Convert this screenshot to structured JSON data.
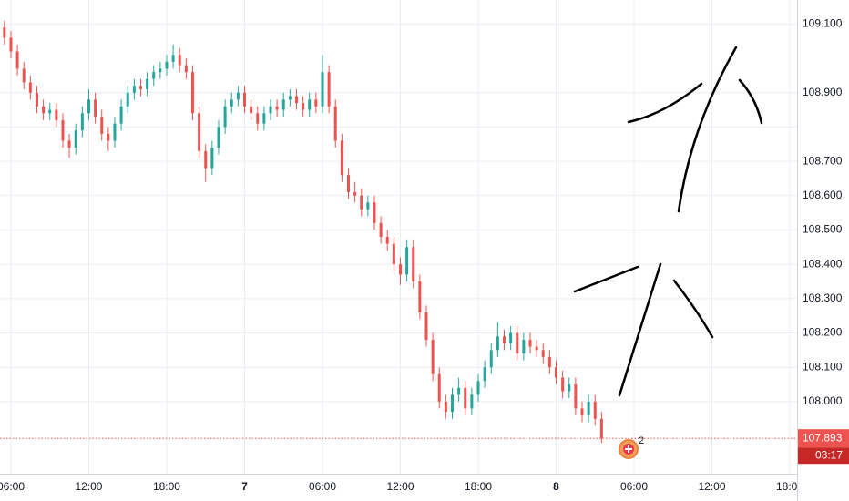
{
  "chart_data": {
    "type": "candlestick",
    "xlim": [
      5.16,
      66.56
    ],
    "xticks": [
      {
        "value": 6,
        "label": "06:00"
      },
      {
        "value": 12,
        "label": "12:00"
      },
      {
        "value": 18,
        "label": "18:00"
      },
      {
        "value": 24,
        "label": "7"
      },
      {
        "value": 30,
        "label": "06:00"
      },
      {
        "value": 36,
        "label": "12:00"
      },
      {
        "value": 42,
        "label": "18:00"
      },
      {
        "value": 48,
        "label": "8"
      },
      {
        "value": 54,
        "label": "06:00"
      },
      {
        "value": 60,
        "label": "12:00"
      },
      {
        "value": 66,
        "label": "18:00"
      }
    ],
    "ylim": [
      107.79,
      109.17
    ],
    "yticks": [
      {
        "value": 108.0,
        "label": "108.000"
      },
      {
        "value": 108.1,
        "label": "108.100"
      },
      {
        "value": 108.2,
        "label": "108.200"
      },
      {
        "value": 108.3,
        "label": "108.300"
      },
      {
        "value": 108.4,
        "label": "108.400"
      },
      {
        "value": 108.5,
        "label": "108.500"
      },
      {
        "value": 108.6,
        "label": "108.600"
      },
      {
        "value": 108.7,
        "label": "108.700"
      },
      {
        "value": 108.8,
        "label": null
      },
      {
        "value": 108.9,
        "label": "108.900"
      },
      {
        "value": 109.1,
        "label": "109.100"
      }
    ],
    "grid": true,
    "up_color": "#26a69a",
    "down_color": "#ef5350",
    "x": [
      5.5,
      6,
      6.5,
      7,
      7.5,
      8,
      8.5,
      9,
      9.5,
      10,
      10.5,
      11,
      11.5,
      12,
      12.5,
      13,
      13.5,
      14,
      14.5,
      15,
      15.5,
      16,
      16.5,
      17,
      17.5,
      18,
      18.5,
      19,
      19.5,
      20,
      20.5,
      21,
      21.5,
      22,
      22.5,
      23,
      23.5,
      24,
      24.5,
      25,
      25.5,
      26,
      26.5,
      27,
      27.5,
      28,
      28.5,
      29,
      29.5,
      30,
      30.5,
      31,
      31.5,
      32,
      32.5,
      33,
      33.5,
      34,
      34.5,
      35,
      35.5,
      36,
      36.5,
      37,
      37.5,
      38,
      38.5,
      39,
      39.5,
      40,
      40.5,
      41,
      41.5,
      42,
      42.5,
      43,
      43.5,
      44,
      44.5,
      45,
      45.5,
      46,
      46.5,
      47,
      47.5,
      48,
      48.5,
      49,
      49.5,
      50,
      50.5,
      51,
      51.5
    ],
    "open": [
      109.09,
      109.06,
      109.02,
      108.97,
      108.93,
      108.9,
      108.86,
      108.84,
      108.85,
      108.82,
      108.76,
      108.74,
      108.79,
      108.84,
      108.88,
      108.83,
      108.78,
      108.76,
      108.81,
      108.86,
      108.9,
      108.92,
      108.91,
      108.94,
      108.96,
      108.97,
      108.99,
      109.01,
      108.98,
      108.96,
      108.84,
      108.73,
      108.68,
      108.74,
      108.8,
      108.86,
      108.88,
      108.9,
      108.86,
      108.84,
      108.81,
      108.84,
      108.86,
      108.85,
      108.88,
      108.89,
      108.87,
      108.85,
      108.88,
      108.86,
      108.96,
      108.86,
      108.76,
      108.66,
      108.61,
      108.6,
      108.56,
      108.58,
      108.52,
      108.48,
      108.46,
      108.4,
      108.37,
      108.45,
      108.35,
      108.26,
      108.18,
      108.08,
      108.0,
      107.97,
      108.02,
      108.04,
      107.98,
      108.02,
      108.06,
      108.1,
      108.15,
      108.19,
      108.17,
      108.2,
      108.14,
      108.18,
      108.16,
      108.15,
      108.13,
      108.1,
      108.07,
      108.03,
      108.05,
      107.98,
      107.96,
      108.0,
      107.95
    ],
    "high": [
      109.11,
      109.08,
      109.04,
      108.99,
      108.95,
      108.92,
      108.88,
      108.87,
      108.87,
      108.84,
      108.78,
      108.81,
      108.86,
      108.91,
      108.9,
      108.85,
      108.8,
      108.83,
      108.88,
      108.92,
      108.94,
      108.94,
      108.96,
      108.98,
      108.99,
      109.01,
      109.04,
      109.03,
      109.0,
      108.98,
      108.86,
      108.75,
      108.76,
      108.82,
      108.88,
      108.9,
      108.92,
      108.92,
      108.88,
      108.86,
      108.86,
      108.88,
      108.88,
      108.9,
      108.91,
      108.91,
      108.89,
      108.9,
      108.9,
      109.01,
      108.98,
      108.88,
      108.78,
      108.68,
      108.64,
      108.62,
      108.6,
      108.6,
      108.54,
      108.5,
      108.48,
      108.42,
      108.47,
      108.47,
      108.37,
      108.28,
      108.2,
      108.1,
      108.02,
      108.04,
      108.07,
      108.06,
      108.04,
      108.08,
      108.12,
      108.17,
      108.23,
      108.21,
      108.22,
      108.22,
      108.2,
      108.2,
      108.18,
      108.17,
      108.15,
      108.12,
      108.09,
      108.07,
      108.07,
      108.0,
      108.02,
      108.02,
      107.97
    ],
    "low": [
      109.04,
      109.0,
      108.95,
      108.91,
      108.88,
      108.84,
      108.82,
      108.82,
      108.8,
      108.74,
      108.71,
      108.72,
      108.77,
      108.82,
      108.81,
      108.76,
      108.73,
      108.74,
      108.79,
      108.84,
      108.88,
      108.89,
      108.89,
      108.92,
      108.94,
      108.95,
      108.97,
      108.96,
      108.94,
      108.82,
      108.71,
      108.64,
      108.66,
      108.72,
      108.78,
      108.84,
      108.86,
      108.84,
      108.82,
      108.79,
      108.79,
      108.82,
      108.83,
      108.83,
      108.86,
      108.85,
      108.83,
      108.83,
      108.84,
      108.84,
      108.84,
      108.74,
      108.64,
      108.59,
      108.58,
      108.54,
      108.54,
      108.5,
      108.46,
      108.44,
      108.38,
      108.34,
      108.35,
      108.33,
      108.24,
      108.16,
      108.06,
      107.98,
      107.95,
      107.95,
      108.0,
      107.96,
      107.96,
      108.0,
      108.04,
      108.08,
      108.13,
      108.15,
      108.15,
      108.12,
      108.12,
      108.14,
      108.13,
      108.11,
      108.08,
      108.05,
      108.01,
      108.01,
      107.96,
      107.94,
      107.94,
      107.93,
      107.88
    ],
    "close": [
      109.06,
      109.02,
      108.97,
      108.93,
      108.9,
      108.86,
      108.84,
      108.85,
      108.82,
      108.76,
      108.74,
      108.79,
      108.84,
      108.88,
      108.83,
      108.78,
      108.76,
      108.81,
      108.86,
      108.9,
      108.92,
      108.91,
      108.94,
      108.96,
      108.97,
      108.99,
      109.01,
      108.98,
      108.96,
      108.84,
      108.73,
      108.68,
      108.74,
      108.8,
      108.86,
      108.88,
      108.9,
      108.86,
      108.84,
      108.81,
      108.84,
      108.86,
      108.85,
      108.88,
      108.89,
      108.87,
      108.85,
      108.88,
      108.86,
      108.96,
      108.86,
      108.76,
      108.66,
      108.61,
      108.6,
      108.56,
      108.58,
      108.52,
      108.48,
      108.46,
      108.4,
      108.37,
      108.45,
      108.35,
      108.26,
      108.18,
      108.08,
      108.0,
      107.97,
      108.02,
      108.04,
      107.98,
      108.02,
      108.06,
      108.1,
      108.15,
      108.19,
      108.17,
      108.2,
      108.14,
      108.18,
      108.16,
      108.15,
      108.13,
      108.1,
      108.07,
      108.03,
      108.05,
      107.98,
      107.96,
      108.0,
      107.95,
      107.893
    ],
    "last_price": 107.893,
    "countdown": "03:17",
    "badge": "2"
  }
}
